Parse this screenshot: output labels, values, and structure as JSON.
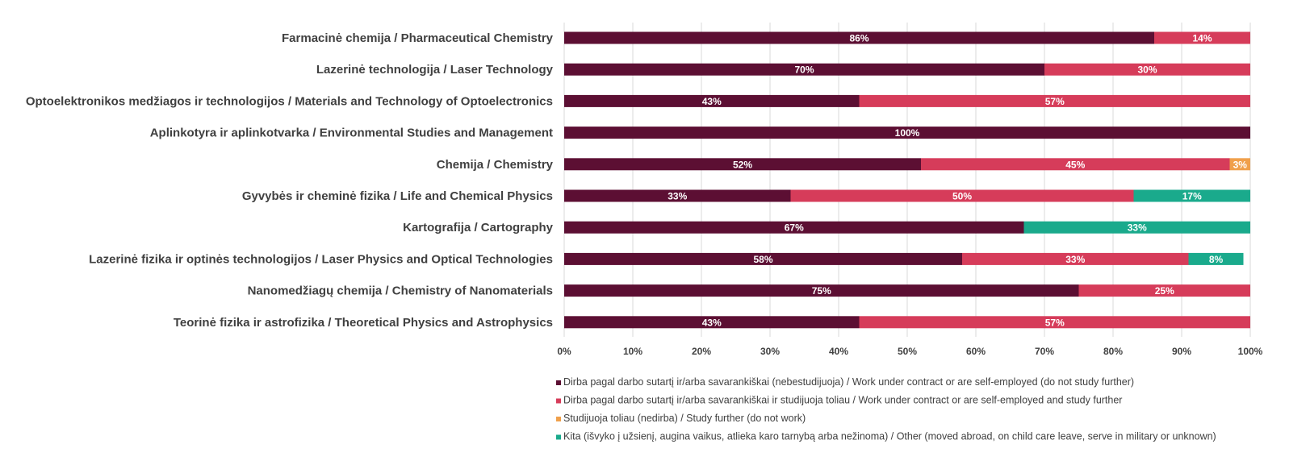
{
  "chart_data": {
    "type": "bar",
    "orientation": "horizontal",
    "stacked": "percent",
    "categories": [
      "Farmacinė chemija / Pharmaceutical Chemistry",
      "Lazerinė technologija / Laser Technology",
      "Optoelektronikos medžiagos ir technologijos / Materials and Technology of Optoelectronics",
      "Aplinkotyra ir aplinkotvarka / Environmental Studies and Management",
      "Chemija / Chemistry",
      "Gyvybės ir cheminė fizika / Life and Chemical Physics",
      "Kartografija / Cartography",
      "Lazerinė fizika ir optinės technologijos / Laser Physics and Optical Technologies",
      "Nanomedžiagų chemija / Chemistry of Nanomaterials",
      "Teorinė fizika ir astrofizika / Theoretical Physics and Astrophysics"
    ],
    "series": [
      {
        "name": "Dirba pagal darbo sutartį ir/arba savarankiškai (nebestudijuoja) / Work under contract or are self-employed (do not study further)",
        "color": "#5c0f33",
        "values": [
          86,
          70,
          43,
          100,
          52,
          33,
          67,
          58,
          75,
          43
        ],
        "labels": [
          "86%",
          "70%",
          "43%",
          "100%",
          "52%",
          "33%",
          "67%",
          "58%",
          "75%",
          "43%"
        ]
      },
      {
        "name": "Dirba pagal darbo sutartį ir/arba savarankiškai  ir studijuoja toliau / Work under contract or are self-employed and study further",
        "color": "#d63c5a",
        "values": [
          14,
          30,
          57,
          0,
          45,
          50,
          0,
          33,
          25,
          57
        ],
        "labels": [
          "14%",
          "30%",
          "57%",
          "",
          "45%",
          "50%",
          "",
          "33%",
          "25%",
          "57%"
        ]
      },
      {
        "name": "Studijuoja toliau (nedirba) / Study further (do not work)",
        "color": "#f0a04b",
        "values": [
          0,
          0,
          0,
          0,
          3,
          0,
          0,
          0,
          0,
          0
        ],
        "labels": [
          "",
          "",
          "",
          "",
          "3%",
          "",
          "",
          "",
          "",
          ""
        ]
      },
      {
        "name": "Kita (išvyko į užsienį, augina vaikus, atlieka karo tarnybą arba nežinoma) / Other (moved abroad, on child care leave, serve in military or unknown)",
        "color": "#1aaa8c",
        "values": [
          0,
          0,
          0,
          0,
          0,
          17,
          33,
          8,
          0,
          0
        ],
        "labels": [
          "",
          "",
          "",
          "",
          "",
          "17%",
          "33%",
          "8%",
          "",
          ""
        ]
      }
    ],
    "xlim": [
      0,
      100
    ],
    "xticks": [
      0,
      10,
      20,
      30,
      40,
      50,
      60,
      70,
      80,
      90,
      100
    ],
    "xtick_labels": [
      "0%",
      "10%",
      "20%",
      "30%",
      "40%",
      "50%",
      "60%",
      "70%",
      "80%",
      "90%",
      "100%"
    ],
    "grid": "vertical",
    "legend_position": "bottom",
    "title": "",
    "xlabel": "",
    "ylabel": ""
  }
}
